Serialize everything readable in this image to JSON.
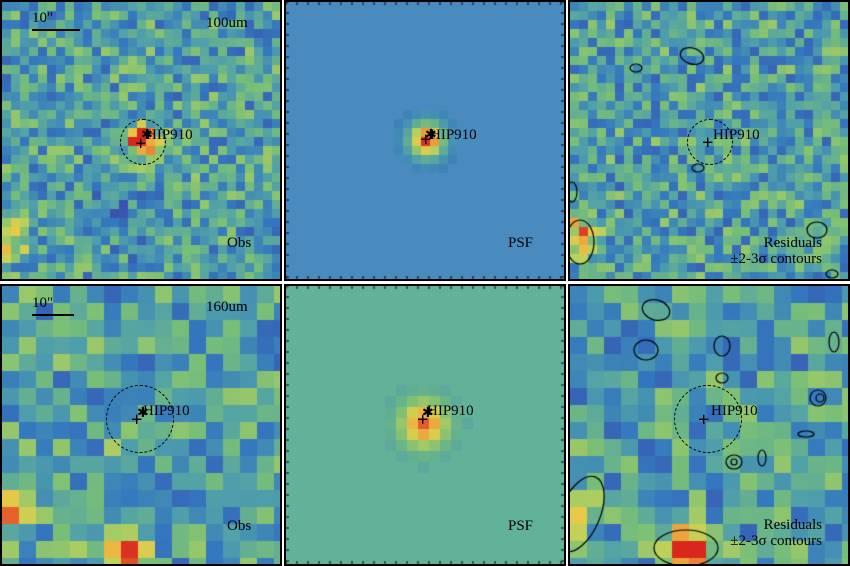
{
  "figure": {
    "target_name": "HIP910",
    "rows": [
      {
        "band": "100um",
        "scale_label": "10\"",
        "panels": [
          {
            "kind": "obs",
            "label": "Obs"
          },
          {
            "kind": "psf",
            "label": "PSF",
            "ticks": [
              "30",
              "20",
              "10"
            ]
          },
          {
            "kind": "residual",
            "label_line1": "Residuals",
            "label_line2": "±2-3σ contours"
          }
        ]
      },
      {
        "band": "160um",
        "scale_label": "10\"",
        "panels": [
          {
            "kind": "obs",
            "label": "Obs"
          },
          {
            "kind": "psf",
            "label": "PSF",
            "ticks": [
              "20",
              "15",
              "10",
              "5"
            ]
          },
          {
            "kind": "residual",
            "label_line1": "Residuals",
            "label_line2": "±2-3σ contours"
          }
        ]
      }
    ],
    "colors": {
      "psf_bg_top": "#4a8bbf",
      "psf_bg_bottom": "#62b29a",
      "peak": "#d9301e",
      "low": "#5a2b86"
    }
  }
}
